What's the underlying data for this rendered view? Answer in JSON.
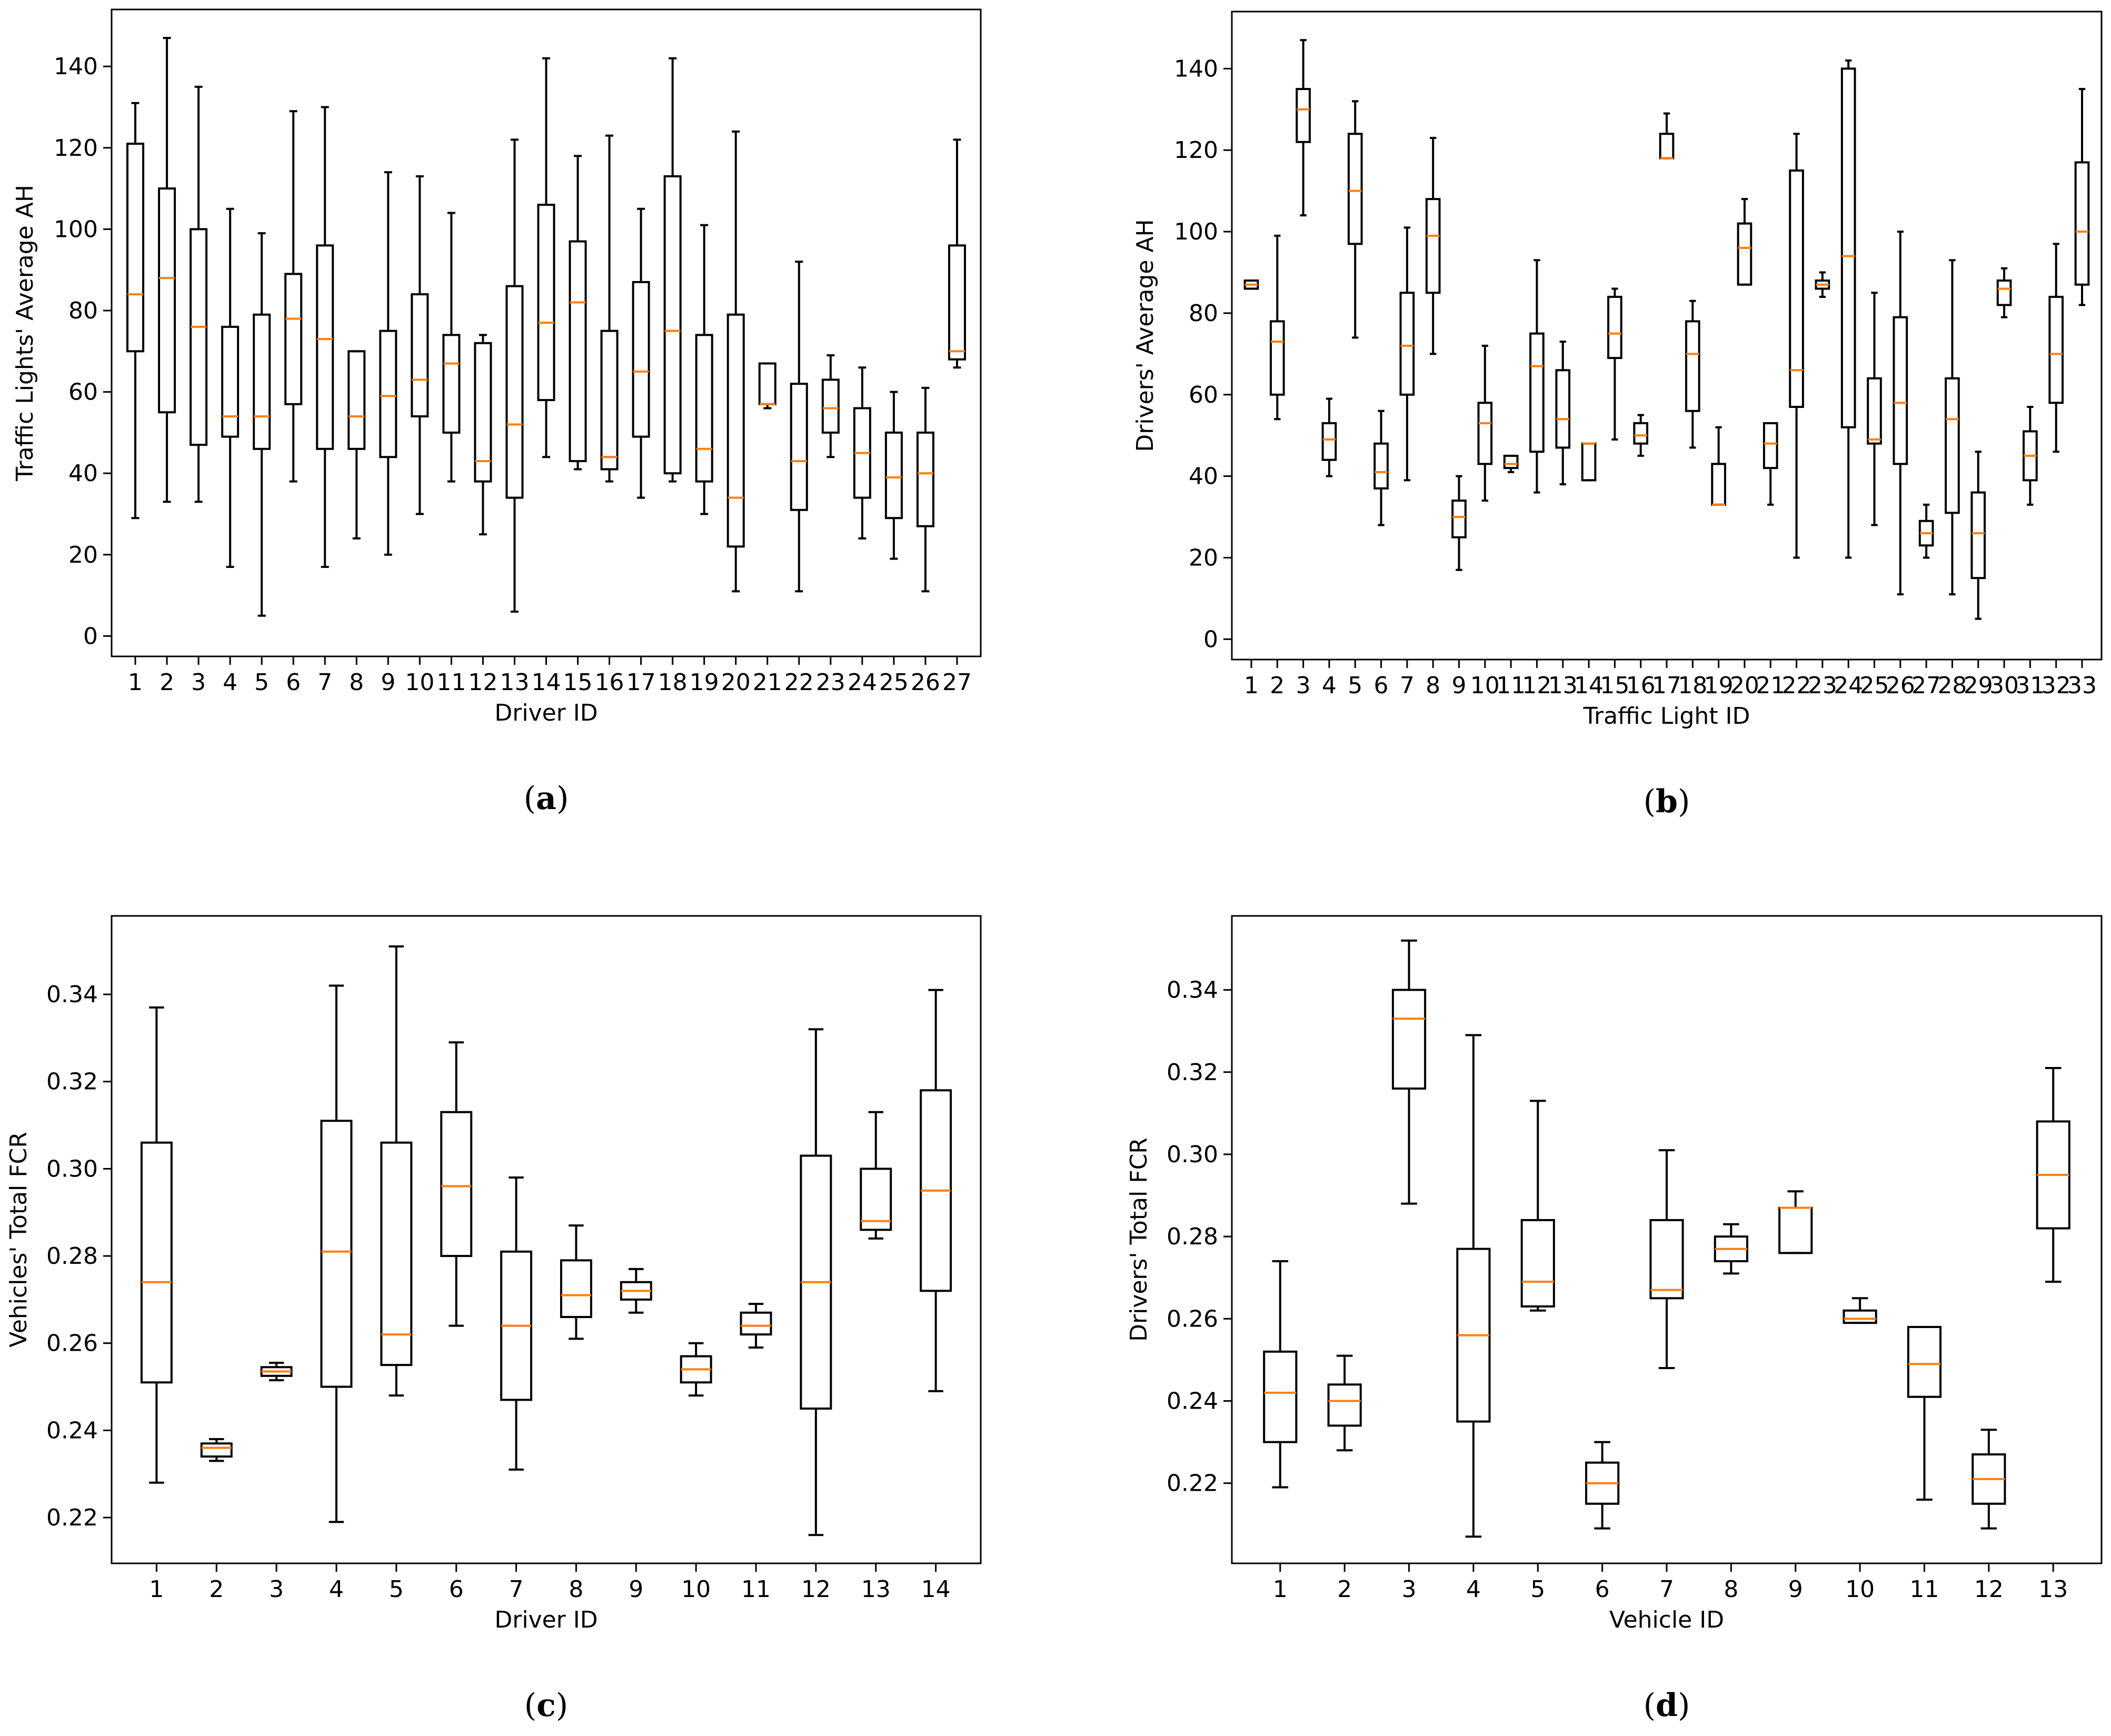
{
  "colors": {
    "box": "#000000",
    "median": "#ff7f0e",
    "background": "#ffffff"
  },
  "chart_data": [
    {
      "id": "a",
      "type": "boxplot",
      "caption_letter": "a",
      "xlabel": "Driver ID",
      "ylabel": "Traffic Lights' Average AH",
      "ylim": [
        -5,
        154
      ],
      "yticks": [
        0,
        20,
        40,
        60,
        80,
        100,
        120,
        140
      ],
      "yformat": "int",
      "categories": [
        "1",
        "2",
        "3",
        "4",
        "5",
        "6",
        "7",
        "8",
        "9",
        "10",
        "11",
        "12",
        "13",
        "14",
        "15",
        "16",
        "17",
        "18",
        "19",
        "20",
        "21",
        "22",
        "23",
        "24",
        "25",
        "26",
        "27"
      ],
      "boxes": [
        {
          "min": 29,
          "q1": 70,
          "median": 84,
          "q3": 121,
          "max": 131
        },
        {
          "min": 33,
          "q1": 55,
          "median": 88,
          "q3": 110,
          "max": 147
        },
        {
          "min": 33,
          "q1": 47,
          "median": 76,
          "q3": 100,
          "max": 135
        },
        {
          "min": 17,
          "q1": 49,
          "median": 54,
          "q3": 76,
          "max": 105
        },
        {
          "min": 5,
          "q1": 46,
          "median": 54,
          "q3": 79,
          "max": 99
        },
        {
          "min": 38,
          "q1": 57,
          "median": 78,
          "q3": 89,
          "max": 129
        },
        {
          "min": 17,
          "q1": 46,
          "median": 73,
          "q3": 96,
          "max": 130
        },
        {
          "min": 24,
          "q1": 46,
          "median": 54,
          "q3": 70,
          "max": 70
        },
        {
          "min": 20,
          "q1": 44,
          "median": 59,
          "q3": 75,
          "max": 114
        },
        {
          "min": 30,
          "q1": 54,
          "median": 63,
          "q3": 84,
          "max": 113
        },
        {
          "min": 38,
          "q1": 50,
          "median": 67,
          "q3": 74,
          "max": 104
        },
        {
          "min": 25,
          "q1": 38,
          "median": 43,
          "q3": 72,
          "max": 74
        },
        {
          "min": 6,
          "q1": 34,
          "median": 52,
          "q3": 86,
          "max": 122
        },
        {
          "min": 44,
          "q1": 58,
          "median": 77,
          "q3": 106,
          "max": 142
        },
        {
          "min": 41,
          "q1": 43,
          "median": 82,
          "q3": 97,
          "max": 118
        },
        {
          "min": 38,
          "q1": 41,
          "median": 44,
          "q3": 75,
          "max": 123
        },
        {
          "min": 34,
          "q1": 49,
          "median": 65,
          "q3": 87,
          "max": 105
        },
        {
          "min": 38,
          "q1": 40,
          "median": 75,
          "q3": 113,
          "max": 142
        },
        {
          "min": 30,
          "q1": 38,
          "median": 46,
          "q3": 74,
          "max": 101
        },
        {
          "min": 11,
          "q1": 22,
          "median": 34,
          "q3": 79,
          "max": 124
        },
        {
          "min": 56,
          "q1": 57,
          "median": 57,
          "q3": 67,
          "max": 67
        },
        {
          "min": 11,
          "q1": 31,
          "median": 43,
          "q3": 62,
          "max": 92
        },
        {
          "min": 44,
          "q1": 50,
          "median": 56,
          "q3": 63,
          "max": 69
        },
        {
          "min": 24,
          "q1": 34,
          "median": 45,
          "q3": 56,
          "max": 66
        },
        {
          "min": 19,
          "q1": 29,
          "median": 39,
          "q3": 50,
          "max": 60
        },
        {
          "min": 11,
          "q1": 27,
          "median": 40,
          "q3": 50,
          "max": 61
        },
        {
          "min": 66,
          "q1": 68,
          "median": 70,
          "q3": 96,
          "max": 122
        }
      ]
    },
    {
      "id": "b",
      "type": "boxplot",
      "caption_letter": "b",
      "xlabel": "Traffic Light ID",
      "ylabel": "Drivers' Average AH",
      "ylim": [
        -5,
        154
      ],
      "yticks": [
        0,
        20,
        40,
        60,
        80,
        100,
        120,
        140
      ],
      "yformat": "int",
      "categories": [
        "1",
        "2",
        "3",
        "4",
        "5",
        "6",
        "7",
        "8",
        "9",
        "10",
        "11",
        "12",
        "13",
        "14",
        "15",
        "16",
        "17",
        "18",
        "19",
        "20",
        "21",
        "22",
        "23",
        "24",
        "25",
        "26",
        "27",
        "28",
        "29",
        "30",
        "31",
        "32",
        "33"
      ],
      "boxes": [
        {
          "min": 86,
          "q1": 86,
          "median": 87,
          "q3": 88,
          "max": 88
        },
        {
          "min": 54,
          "q1": 60,
          "median": 73,
          "q3": 78,
          "max": 99
        },
        {
          "min": 104,
          "q1": 122,
          "median": 130,
          "q3": 135,
          "max": 147
        },
        {
          "min": 40,
          "q1": 44,
          "median": 49,
          "q3": 53,
          "max": 59
        },
        {
          "min": 74,
          "q1": 97,
          "median": 110,
          "q3": 124,
          "max": 132
        },
        {
          "min": 28,
          "q1": 37,
          "median": 41,
          "q3": 48,
          "max": 56
        },
        {
          "min": 39,
          "q1": 60,
          "median": 72,
          "q3": 85,
          "max": 101
        },
        {
          "min": 70,
          "q1": 85,
          "median": 99,
          "q3": 108,
          "max": 123
        },
        {
          "min": 17,
          "q1": 25,
          "median": 30,
          "q3": 34,
          "max": 40
        },
        {
          "min": 34,
          "q1": 43,
          "median": 53,
          "q3": 58,
          "max": 72
        },
        {
          "min": 41,
          "q1": 42,
          "median": 43,
          "q3": 45,
          "max": 45
        },
        {
          "min": 36,
          "q1": 46,
          "median": 67,
          "q3": 75,
          "max": 93
        },
        {
          "min": 38,
          "q1": 47,
          "median": 54,
          "q3": 66,
          "max": 73
        },
        {
          "min": 39,
          "q1": 39,
          "median": 48,
          "q3": 48,
          "max": 48
        },
        {
          "min": 49,
          "q1": 69,
          "median": 75,
          "q3": 84,
          "max": 86
        },
        {
          "min": 45,
          "q1": 48,
          "median": 50,
          "q3": 53,
          "max": 55
        },
        {
          "min": 118,
          "q1": 118,
          "median": 118,
          "q3": 124,
          "max": 129
        },
        {
          "min": 47,
          "q1": 56,
          "median": 70,
          "q3": 78,
          "max": 83
        },
        {
          "min": 33,
          "q1": 33,
          "median": 33,
          "q3": 43,
          "max": 52
        },
        {
          "min": 87,
          "q1": 87,
          "median": 96,
          "q3": 102,
          "max": 108
        },
        {
          "min": 33,
          "q1": 42,
          "median": 48,
          "q3": 53,
          "max": 53
        },
        {
          "min": 20,
          "q1": 57,
          "median": 66,
          "q3": 115,
          "max": 124
        },
        {
          "min": 84,
          "q1": 86,
          "median": 87,
          "q3": 88,
          "max": 90
        },
        {
          "min": 20,
          "q1": 52,
          "median": 94,
          "q3": 140,
          "max": 142
        },
        {
          "min": 28,
          "q1": 48,
          "median": 49,
          "q3": 64,
          "max": 85
        },
        {
          "min": 11,
          "q1": 43,
          "median": 58,
          "q3": 79,
          "max": 100
        },
        {
          "min": 20,
          "q1": 23,
          "median": 26,
          "q3": 29,
          "max": 33
        },
        {
          "min": 11,
          "q1": 31,
          "median": 54,
          "q3": 64,
          "max": 93
        },
        {
          "min": 5,
          "q1": 15,
          "median": 26,
          "q3": 36,
          "max": 46
        },
        {
          "min": 79,
          "q1": 82,
          "median": 86,
          "q3": 88,
          "max": 91
        },
        {
          "min": 33,
          "q1": 39,
          "median": 45,
          "q3": 51,
          "max": 57
        },
        {
          "min": 46,
          "q1": 58,
          "median": 70,
          "q3": 84,
          "max": 97
        },
        {
          "min": 82,
          "q1": 87,
          "median": 100,
          "q3": 117,
          "max": 135
        }
      ]
    },
    {
      "id": "c",
      "type": "boxplot",
      "caption_letter": "c",
      "xlabel": "Driver ID",
      "ylabel": "Vehicles' Total FCR",
      "ylim": [
        0.2095,
        0.358
      ],
      "yticks": [
        0.22,
        0.24,
        0.26,
        0.28,
        0.3,
        0.32,
        0.34
      ],
      "yformat": "2dp",
      "categories": [
        "1",
        "2",
        "3",
        "4",
        "5",
        "6",
        "7",
        "8",
        "9",
        "10",
        "11",
        "12",
        "13",
        "14"
      ],
      "boxes": [
        {
          "min": 0.228,
          "q1": 0.251,
          "median": 0.274,
          "q3": 0.306,
          "max": 0.337
        },
        {
          "min": 0.233,
          "q1": 0.234,
          "median": 0.236,
          "q3": 0.237,
          "max": 0.238
        },
        {
          "min": 0.2515,
          "q1": 0.2525,
          "median": 0.2535,
          "q3": 0.2545,
          "max": 0.2555
        },
        {
          "min": 0.219,
          "q1": 0.25,
          "median": 0.281,
          "q3": 0.311,
          "max": 0.342
        },
        {
          "min": 0.248,
          "q1": 0.255,
          "median": 0.262,
          "q3": 0.306,
          "max": 0.351
        },
        {
          "min": 0.264,
          "q1": 0.28,
          "median": 0.296,
          "q3": 0.313,
          "max": 0.329
        },
        {
          "min": 0.231,
          "q1": 0.247,
          "median": 0.264,
          "q3": 0.281,
          "max": 0.298
        },
        {
          "min": 0.261,
          "q1": 0.266,
          "median": 0.271,
          "q3": 0.279,
          "max": 0.287
        },
        {
          "min": 0.267,
          "q1": 0.27,
          "median": 0.272,
          "q3": 0.274,
          "max": 0.277
        },
        {
          "min": 0.248,
          "q1": 0.251,
          "median": 0.254,
          "q3": 0.257,
          "max": 0.26
        },
        {
          "min": 0.259,
          "q1": 0.262,
          "median": 0.264,
          "q3": 0.267,
          "max": 0.269
        },
        {
          "min": 0.216,
          "q1": 0.245,
          "median": 0.274,
          "q3": 0.303,
          "max": 0.332
        },
        {
          "min": 0.284,
          "q1": 0.286,
          "median": 0.288,
          "q3": 0.3,
          "max": 0.313
        },
        {
          "min": 0.249,
          "q1": 0.272,
          "median": 0.295,
          "q3": 0.318,
          "max": 0.341
        }
      ]
    },
    {
      "id": "d",
      "type": "boxplot",
      "caption_letter": "d",
      "xlabel": "Vehicle ID",
      "ylabel": "Drivers' Total FCR",
      "ylim": [
        0.2005,
        0.358
      ],
      "yticks": [
        0.22,
        0.24,
        0.26,
        0.28,
        0.3,
        0.32,
        0.34
      ],
      "yformat": "2dp",
      "categories": [
        "1",
        "2",
        "3",
        "4",
        "5",
        "6",
        "7",
        "8",
        "9",
        "10",
        "11",
        "12",
        "13"
      ],
      "boxes": [
        {
          "min": 0.219,
          "q1": 0.23,
          "median": 0.242,
          "q3": 0.252,
          "max": 0.274
        },
        {
          "min": 0.228,
          "q1": 0.234,
          "median": 0.24,
          "q3": 0.244,
          "max": 0.251
        },
        {
          "min": 0.288,
          "q1": 0.316,
          "median": 0.333,
          "q3": 0.34,
          "max": 0.352
        },
        {
          "min": 0.207,
          "q1": 0.235,
          "median": 0.256,
          "q3": 0.277,
          "max": 0.329
        },
        {
          "min": 0.262,
          "q1": 0.263,
          "median": 0.269,
          "q3": 0.284,
          "max": 0.313
        },
        {
          "min": 0.209,
          "q1": 0.215,
          "median": 0.22,
          "q3": 0.225,
          "max": 0.23
        },
        {
          "min": 0.248,
          "q1": 0.265,
          "median": 0.267,
          "q3": 0.284,
          "max": 0.301
        },
        {
          "min": 0.271,
          "q1": 0.274,
          "median": 0.277,
          "q3": 0.28,
          "max": 0.283
        },
        {
          "min": 0.276,
          "q1": 0.276,
          "median": 0.287,
          "q3": 0.287,
          "max": 0.291
        },
        {
          "min": 0.259,
          "q1": 0.259,
          "median": 0.26,
          "q3": 0.262,
          "max": 0.265
        },
        {
          "min": 0.216,
          "q1": 0.241,
          "median": 0.249,
          "q3": 0.258,
          "max": 0.258
        },
        {
          "min": 0.209,
          "q1": 0.215,
          "median": 0.221,
          "q3": 0.227,
          "max": 0.233
        },
        {
          "min": 0.269,
          "q1": 0.282,
          "median": 0.295,
          "q3": 0.308,
          "max": 0.321
        }
      ]
    }
  ]
}
